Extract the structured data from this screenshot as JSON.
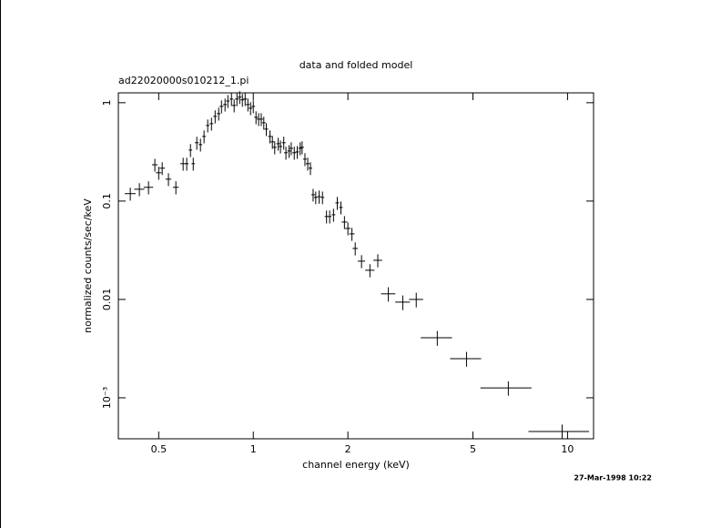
{
  "chart_data": {
    "type": "errorbar-scatter",
    "title": "data and folded model",
    "subtitle": "ad22020000s010212_1.pi",
    "x_label": "channel energy (keV)",
    "y_label": "normalized counts/sec/keV",
    "timestamp": "27-Mar-1998 10:22",
    "x_log": true,
    "y_log": true,
    "color": "#000000",
    "xlim": [
      0.372,
      12.1
    ],
    "ylim": [
      0.000383,
      1.26
    ],
    "xticks": [
      0.5,
      1,
      2,
      5,
      10
    ],
    "yticks": [
      1,
      0.1,
      0.01,
      {
        "value": 0.001,
        "label": "10⁻³"
      }
    ],
    "x": [
      0.406,
      0.434,
      0.464,
      0.486,
      0.5,
      0.513,
      0.537,
      0.567,
      0.598,
      0.614,
      0.631,
      0.644,
      0.661,
      0.679,
      0.697,
      0.716,
      0.736,
      0.756,
      0.776,
      0.792,
      0.813,
      0.83,
      0.852,
      0.869,
      0.887,
      0.905,
      0.923,
      0.942,
      0.961,
      0.98,
      1.0,
      1.02,
      1.04,
      1.06,
      1.08,
      1.1,
      1.13,
      1.15,
      1.17,
      1.2,
      1.22,
      1.25,
      1.27,
      1.3,
      1.32,
      1.35,
      1.38,
      1.41,
      1.43,
      1.46,
      1.49,
      1.52,
      1.55,
      1.58,
      1.62,
      1.66,
      1.71,
      1.75,
      1.8,
      1.85,
      1.9,
      1.95,
      2.0,
      2.06,
      2.11,
      2.21,
      2.35,
      2.49,
      2.69,
      2.99,
      3.3,
      3.85,
      4.77,
      6.48,
      9.61
    ],
    "x_err": [
      0.016,
      0.016,
      0.016,
      0.01,
      0.01,
      0.01,
      0.011,
      0.012,
      0.012,
      0.008,
      0.008,
      0.008,
      0.009,
      0.009,
      0.009,
      0.009,
      0.01,
      0.01,
      0.01,
      0.011,
      0.011,
      0.011,
      0.011,
      0.012,
      0.012,
      0.012,
      0.012,
      0.013,
      0.013,
      0.013,
      0.013,
      0.013,
      0.014,
      0.014,
      0.014,
      0.015,
      0.015,
      0.015,
      0.016,
      0.016,
      0.016,
      0.017,
      0.017,
      0.017,
      0.018,
      0.018,
      0.018,
      0.019,
      0.019,
      0.019,
      0.02,
      0.02,
      0.021,
      0.021,
      0.022,
      0.022,
      0.023,
      0.023,
      0.024,
      0.025,
      0.025,
      0.04,
      0.04,
      0.04,
      0.04,
      0.06,
      0.08,
      0.08,
      0.14,
      0.16,
      0.17,
      0.44,
      0.54,
      1.2,
      2.1
    ],
    "values": [
      0.119,
      0.132,
      0.138,
      0.234,
      0.194,
      0.216,
      0.167,
      0.138,
      0.24,
      0.24,
      0.33,
      0.24,
      0.392,
      0.375,
      0.454,
      0.587,
      0.612,
      0.726,
      0.774,
      0.918,
      0.958,
      1.04,
      1.09,
      0.938,
      1.09,
      1.14,
      1.07,
      1.09,
      0.958,
      0.88,
      0.918,
      0.711,
      0.681,
      0.681,
      0.626,
      0.539,
      0.454,
      0.4,
      0.352,
      0.383,
      0.359,
      0.392,
      0.31,
      0.323,
      0.344,
      0.31,
      0.316,
      0.344,
      0.352,
      0.267,
      0.24,
      0.216,
      0.116,
      0.109,
      0.111,
      0.109,
      0.0697,
      0.0697,
      0.0726,
      0.0958,
      0.0861,
      0.0612,
      0.0527,
      0.0464,
      0.033,
      0.0245,
      0.0198,
      0.025,
      0.0114,
      0.00938,
      0.01,
      0.00408,
      0.0025,
      0.00126,
      0.000454
    ],
    "y_err": [
      0.018,
      0.02,
      0.021,
      0.035,
      0.029,
      0.032,
      0.025,
      0.021,
      0.036,
      0.036,
      0.05,
      0.036,
      0.059,
      0.056,
      0.068,
      0.088,
      0.092,
      0.11,
      0.116,
      0.138,
      0.144,
      0.156,
      0.164,
      0.141,
      0.164,
      0.17,
      0.16,
      0.164,
      0.144,
      0.132,
      0.138,
      0.107,
      0.102,
      0.102,
      0.094,
      0.081,
      0.068,
      0.06,
      0.053,
      0.057,
      0.054,
      0.059,
      0.047,
      0.048,
      0.052,
      0.047,
      0.047,
      0.052,
      0.053,
      0.04,
      0.036,
      0.032,
      0.017,
      0.016,
      0.017,
      0.016,
      0.0105,
      0.0105,
      0.011,
      0.0144,
      0.0129,
      0.0092,
      0.0079,
      0.007,
      0.005,
      0.0037,
      0.003,
      0.0038,
      0.0019,
      0.0016,
      0.0017,
      0.0007,
      0.00043,
      0.00021,
      8e-05
    ]
  }
}
